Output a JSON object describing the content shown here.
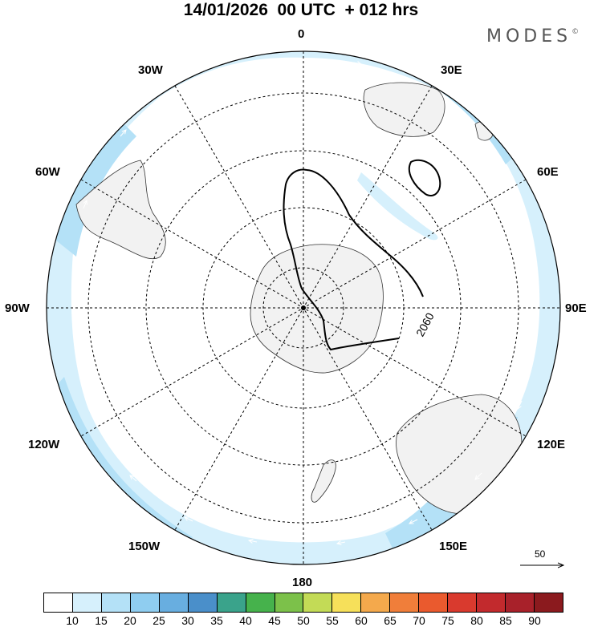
{
  "title": "14/01/2026  00 UTC  + 012 hrs",
  "brand": {
    "name": "MODES",
    "mark": "©"
  },
  "longitude_labels": {
    "lon_0": "0",
    "lon_30e": "30E",
    "lon_60e": "60E",
    "lon_90e": "90E",
    "lon_120e": "120E",
    "lon_150e": "150E",
    "lon_180": "180",
    "lon_150w": "150W",
    "lon_120w": "120W",
    "lon_90w": "90W",
    "lon_60w": "60W",
    "lon_30w": "30W"
  },
  "contour": {
    "label": "2060"
  },
  "reference_vector": {
    "value": "50"
  },
  "colorbar": {
    "colors": [
      "#ffffff",
      "#d6f0fc",
      "#b4e1f7",
      "#8fcdf0",
      "#68aee0",
      "#4a8fca",
      "#3aa38b",
      "#46b24c",
      "#7cc14a",
      "#c3db56",
      "#f6e05a",
      "#f4a94c",
      "#f07e3a",
      "#ea5a2e",
      "#d93a2e",
      "#c22a2d",
      "#a8212a",
      "#8b1a1e"
    ],
    "ticks": [
      "10",
      "15",
      "20",
      "25",
      "30",
      "35",
      "40",
      "45",
      "50",
      "55",
      "60",
      "65",
      "70",
      "75",
      "80",
      "85",
      "90"
    ]
  }
}
